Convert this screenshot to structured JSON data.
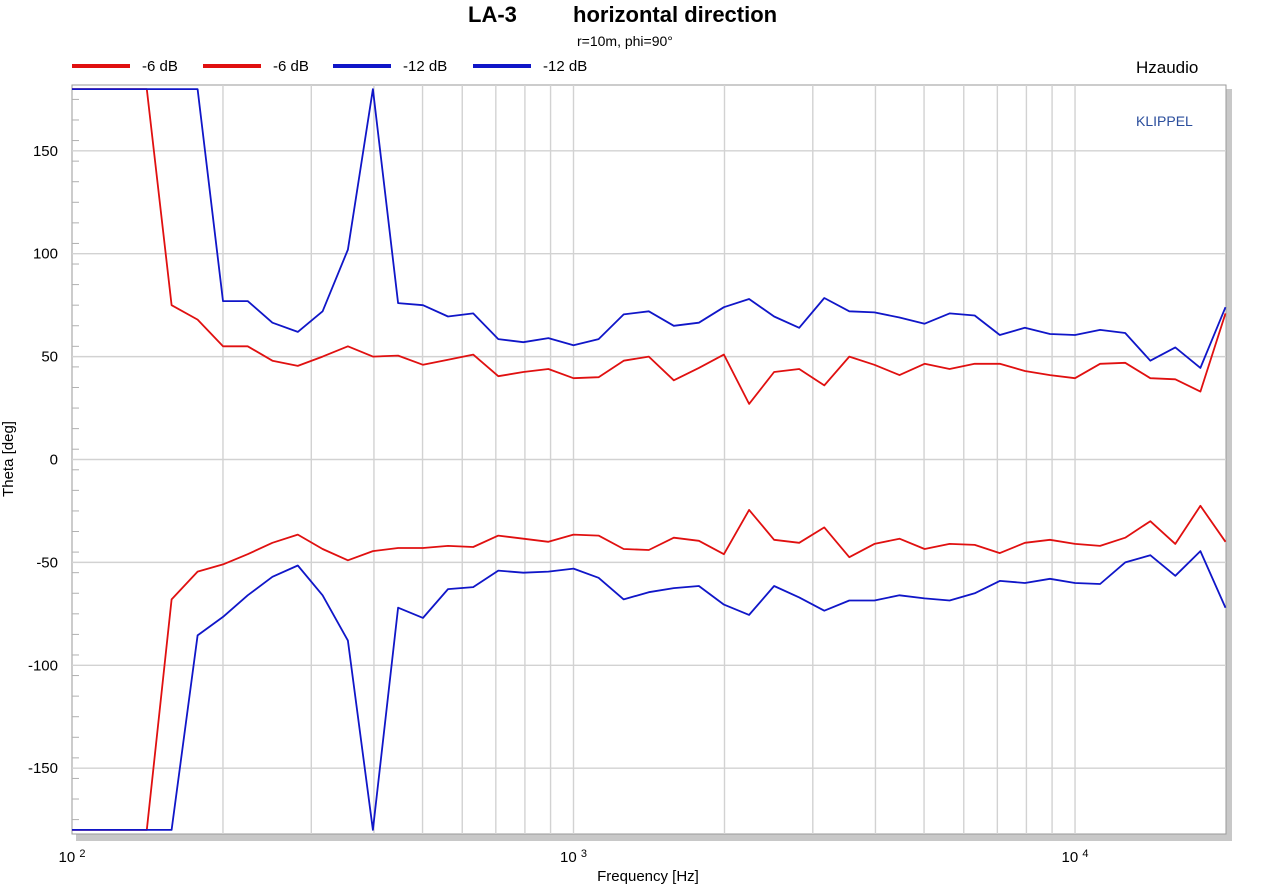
{
  "chart_data": {
    "type": "line",
    "title_left": "LA-3",
    "title_right": "horizontal direction",
    "subtitle": "r=10m, phi=90°",
    "brand": "Hzaudio",
    "watermark": "KLIPPEL",
    "xlabel": "Frequency [Hz]",
    "ylabel": "Theta [deg]",
    "x_scale": "log",
    "xlim": [
      100,
      20000
    ],
    "ylim": [
      -182,
      182
    ],
    "grid": true,
    "legend_position": "top-left",
    "yticks": [
      150,
      100,
      50,
      0,
      -50,
      -100,
      -150
    ],
    "ytick_labels": [
      "150",
      "100",
      "50",
      "0",
      "-50",
      "-100",
      "-150"
    ],
    "xtick_labels": [
      {
        "value": 100,
        "base": "10",
        "exp": "2"
      },
      {
        "value": 1000,
        "base": "10",
        "exp": "3"
      },
      {
        "value": 10000,
        "base": "10",
        "exp": "4"
      }
    ],
    "x": [
      100,
      112,
      125,
      141,
      158,
      178,
      200,
      224,
      251,
      282,
      316,
      355,
      398,
      447,
      501,
      562,
      631,
      708,
      794,
      891,
      1000,
      1122,
      1259,
      1413,
      1585,
      1778,
      1995,
      2239,
      2512,
      2818,
      3162,
      3548,
      3981,
      4467,
      5012,
      5623,
      6310,
      7079,
      7943,
      8913,
      10000,
      11220,
      12589,
      14125,
      15849,
      17783,
      19953
    ],
    "series": [
      {
        "name": "-6 dB",
        "color": "#e01010",
        "values": [
          180,
          180,
          180,
          180,
          75,
          68,
          55,
          55,
          48,
          45.5,
          50,
          55,
          50,
          50.5,
          46,
          48.5,
          51,
          40.5,
          42.5,
          44,
          39.5,
          40,
          48,
          50,
          38.5,
          44.5,
          51,
          27,
          42.5,
          44,
          36,
          50,
          46,
          41,
          46.5,
          44,
          46.5,
          46.5,
          43,
          41,
          39.5,
          46.5,
          47,
          39.5,
          39,
          33,
          71
        ]
      },
      {
        "name": "-6 dB",
        "color": "#e01010",
        "values": [
          -180,
          -180,
          -180,
          -180,
          -68,
          -54.5,
          -51,
          -46,
          -40.5,
          -36.5,
          -43.5,
          -49,
          -44.5,
          -43,
          -43,
          -42,
          -42.5,
          -37,
          -38.5,
          -40,
          -36.5,
          -37,
          -43.5,
          -44,
          -38,
          -39.5,
          -46,
          -24.5,
          -39,
          -40.5,
          -33,
          -47.5,
          -41,
          -38.5,
          -43.5,
          -41,
          -41.5,
          -45.5,
          -40.5,
          -39,
          -41,
          -42,
          -38,
          -30,
          -41,
          -22.5,
          -40
        ]
      },
      {
        "name": "-12 dB",
        "color": "#1016c8",
        "values": [
          180,
          180,
          180,
          180,
          180,
          180,
          77,
          77,
          66.5,
          62,
          72,
          102,
          180,
          76,
          75,
          69.5,
          71,
          58.5,
          57,
          59,
          55.5,
          58.5,
          70.5,
          72,
          65,
          66.5,
          74,
          78,
          69.5,
          64,
          78.5,
          72,
          71.5,
          69,
          66,
          71,
          70,
          60.5,
          64,
          61,
          60.5,
          63,
          61.5,
          48,
          54.5,
          44.5,
          74
        ]
      },
      {
        "name": "-12 dB",
        "color": "#1016c8",
        "values": [
          -180,
          -180,
          -180,
          -180,
          -180,
          -85.5,
          -76.5,
          -66,
          -57,
          -51.5,
          -66,
          -88,
          -180,
          -72,
          -77,
          -63,
          -62,
          -54,
          -55,
          -54.5,
          -53,
          -57.5,
          -68,
          -64.5,
          -62.5,
          -61.5,
          -70.5,
          -75.5,
          -61.5,
          -67,
          -73.5,
          -68.5,
          -68.5,
          -66,
          -67.5,
          -68.5,
          -65,
          -59,
          -60,
          -58,
          -60,
          -60.5,
          -50,
          -46.5,
          -56.5,
          -44.5,
          -72
        ]
      }
    ]
  }
}
